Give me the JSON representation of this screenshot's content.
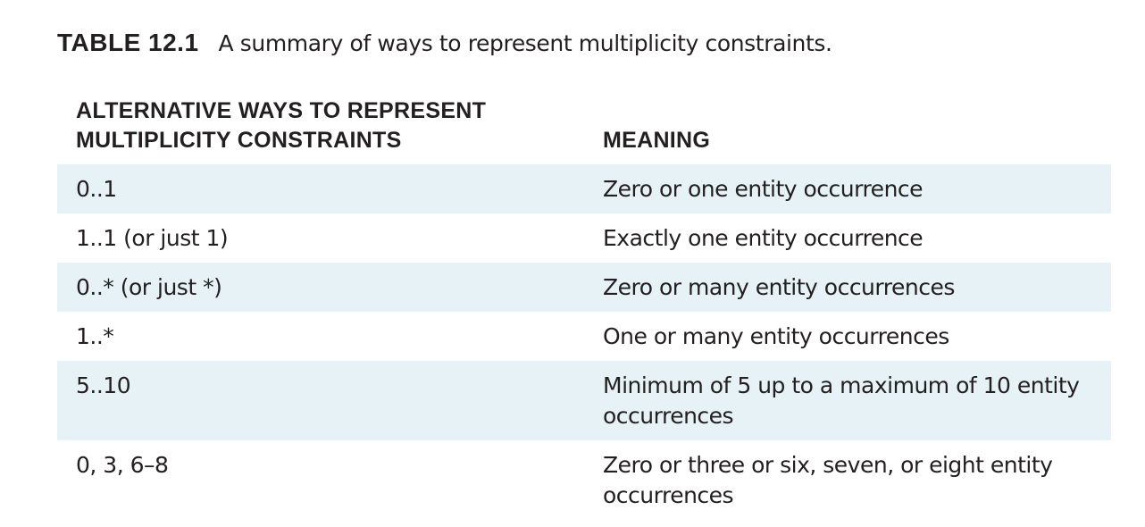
{
  "caption": {
    "label": "TABLE 12.1",
    "text": "A summary of ways to represent multiplicity constraints."
  },
  "table": {
    "header": {
      "col1": "ALTERNATIVE WAYS TO REPRESENT MULTIPLICITY CONSTRAINTS",
      "col2": "MEANING"
    },
    "rows": [
      {
        "constraint": "0..1",
        "meaning": "Zero or one entity occurrence"
      },
      {
        "constraint": "1..1 (or just 1)",
        "meaning": "Exactly one entity occurrence"
      },
      {
        "constraint": "0..* (or just *)",
        "meaning": "Zero or many entity occurrences"
      },
      {
        "constraint": "1..*",
        "meaning": "One or many entity occurrences"
      },
      {
        "constraint": "5..10",
        "meaning": "Minimum of 5 up to a maximum of 10 entity occurrences"
      },
      {
        "constraint": "0, 3, 6–8",
        "meaning": "Zero or three or six, seven, or eight entity occurrences"
      }
    ],
    "shade_color": "#e6f2f5"
  }
}
